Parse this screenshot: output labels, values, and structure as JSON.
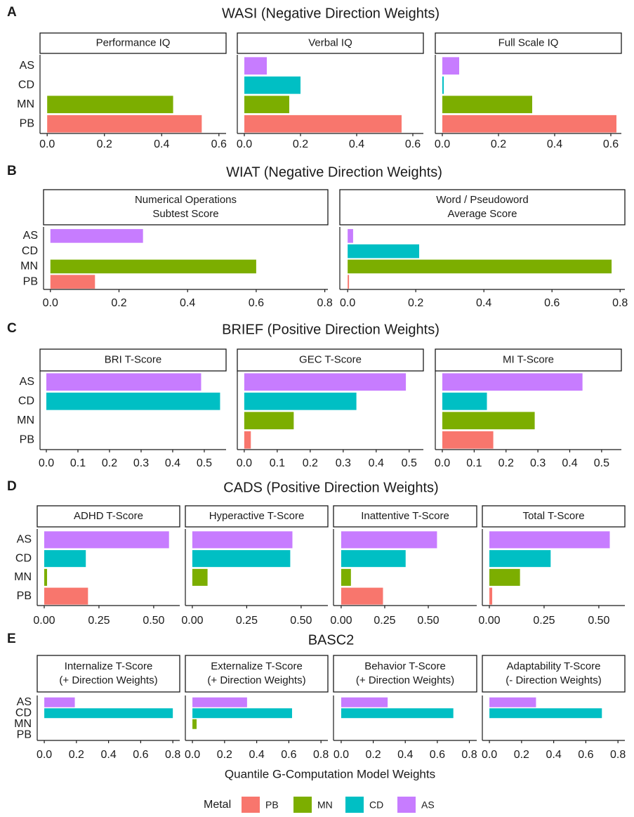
{
  "chart_data": [
    {
      "type": "bar",
      "label": "A",
      "title": "WASI (Negative Direction Weights)",
      "categories": [
        "AS",
        "CD",
        "MN",
        "PB"
      ],
      "facets": [
        {
          "title": [
            "Performance IQ"
          ],
          "values": [
            0,
            0,
            0.44,
            0.54
          ],
          "xlim": [
            -0.025,
            0.625
          ],
          "xticks": [
            {
              "value": 0,
              "label": "0.0"
            },
            0.2,
            0.4,
            0.6
          ]
        },
        {
          "title": [
            "Verbal IQ"
          ],
          "values": [
            0.08,
            0.2,
            0.16,
            0.56
          ],
          "xlim": [
            -0.025,
            0.6375
          ],
          "xticks": [
            {
              "value": 0,
              "label": "0.0"
            },
            0.2,
            0.4,
            0.6
          ]
        },
        {
          "title": [
            "Full Scale IQ"
          ],
          "values": [
            0.06,
            0.005,
            0.32,
            0.62
          ],
          "xlim": [
            -0.025,
            0.6375
          ],
          "xticks": [
            {
              "value": 0,
              "label": "0.0"
            },
            0.2,
            0.4,
            0.6
          ]
        }
      ]
    },
    {
      "type": "bar",
      "label": "B",
      "title": "WIAT (Negative Direction Weights)",
      "categories": [
        "AS",
        "CD",
        "MN",
        "PB"
      ],
      "facets": [
        {
          "title": [
            "Numerical Operations",
            "Subtest Score"
          ],
          "values": [
            0.27,
            0,
            0.6,
            0.13
          ],
          "xlim": [
            -0.02,
            0.809
          ],
          "xticks": [
            {
              "value": 0,
              "label": "0.0"
            },
            0.2,
            0.4,
            0.6,
            0.8
          ]
        },
        {
          "title": [
            "Word / Pseudoword",
            "Average Score"
          ],
          "values": [
            0.016,
            0.21,
            0.775,
            0.004
          ],
          "xlim": [
            -0.023,
            0.814
          ],
          "xticks": [
            {
              "value": 0,
              "label": "0.0"
            },
            0.2,
            0.4,
            0.6,
            0.8
          ]
        }
      ]
    },
    {
      "type": "bar",
      "label": "C",
      "title": "BRIEF (Positive Direction Weights)",
      "categories": [
        "AS",
        "CD",
        "MN",
        "PB"
      ],
      "facets": [
        {
          "title": [
            "BRI T-Score"
          ],
          "values": [
            0.49,
            0.55,
            0,
            0
          ],
          "xlim": [
            -0.02,
            0.569
          ],
          "xticks": [
            {
              "value": 0,
              "label": "0.0"
            },
            0.1,
            0.2,
            0.3,
            0.4,
            0.5
          ]
        },
        {
          "title": [
            "GEC T-Score"
          ],
          "values": [
            0.49,
            0.34,
            0.15,
            0.02
          ],
          "xlim": [
            -0.021,
            0.543
          ],
          "xticks": [
            {
              "value": 0,
              "label": "0.0"
            },
            0.1,
            0.2,
            0.3,
            0.4,
            0.5
          ]
        },
        {
          "title": [
            "MI T-Score"
          ],
          "values": [
            0.44,
            0.14,
            0.29,
            0.16
          ],
          "xlim": [
            -0.022,
            0.562
          ],
          "xticks": [
            {
              "value": 0,
              "label": "0.0"
            },
            0.1,
            0.2,
            0.3,
            0.4,
            0.5
          ]
        }
      ]
    },
    {
      "type": "bar",
      "label": "D",
      "title": "CADS (Positive Direction Weights)",
      "categories": [
        "AS",
        "CD",
        "MN",
        "PB"
      ],
      "facets": [
        {
          "title": [
            "ADHD T-Score"
          ],
          "values": [
            0.57,
            0.19,
            0.013,
            0.2
          ],
          "xlim": [
            -0.032,
            0.619
          ],
          "xticks": [
            {
              "value": 0,
              "label": "0.00"
            },
            0.25,
            {
              "value": 0.5,
              "label": "0.50"
            }
          ]
        },
        {
          "title": [
            "Hyperactive T-Score"
          ],
          "values": [
            0.46,
            0.45,
            0.07,
            0
          ],
          "xlim": [
            -0.032,
            0.623
          ],
          "xticks": [
            {
              "value": 0,
              "label": "0.00"
            },
            0.25,
            {
              "value": 0.5,
              "label": "0.50"
            }
          ]
        },
        {
          "title": [
            "Inattentive T-Score"
          ],
          "values": [
            0.55,
            0.37,
            0.056,
            0.24
          ],
          "xlim": [
            -0.044,
            0.778
          ],
          "xticks": [
            {
              "value": 0,
              "label": "0.00"
            },
            0.25,
            {
              "value": 0.5,
              "label": "0.50"
            }
          ]
        },
        {
          "title": [
            "Total T-Score"
          ],
          "values": [
            0.55,
            0.28,
            0.14,
            0.013
          ],
          "xlim": [
            -0.032,
            0.619
          ],
          "xticks": [
            {
              "value": 0,
              "label": "0.00"
            },
            0.25,
            {
              "value": 0.5,
              "label": "0.50"
            }
          ]
        }
      ]
    },
    {
      "type": "bar",
      "label": "E",
      "title": "BASC2",
      "categories": [
        "AS",
        "CD",
        "MN",
        "PB"
      ],
      "facets": [
        {
          "title": [
            "Internalize T-Score",
            "(+ Direction Weights)"
          ],
          "values": [
            0.19,
            0.8,
            0,
            0
          ],
          "xlim": [
            -0.044,
            0.843
          ],
          "xticks": [
            {
              "value": 0,
              "label": "0.0"
            },
            0.2,
            0.4,
            0.6,
            0.8
          ]
        },
        {
          "title": [
            "Externalize T-Score",
            "(+ Direction Weights)"
          ],
          "values": [
            0.34,
            0.62,
            0.026,
            0
          ],
          "xlim": [
            -0.044,
            0.843
          ],
          "xticks": [
            {
              "value": 0,
              "label": "0.0"
            },
            0.2,
            0.4,
            0.6,
            0.8
          ]
        },
        {
          "title": [
            "Behavior T-Score",
            "(+ Direction Weights)"
          ],
          "values": [
            0.29,
            0.7,
            0,
            0
          ],
          "xlim": [
            -0.048,
            0.846
          ],
          "xticks": [
            {
              "value": 0,
              "label": "0.0"
            },
            0.2,
            0.4,
            0.6,
            0.8
          ]
        },
        {
          "title": [
            "Adaptability T-Score",
            "(- Direction Weights)"
          ],
          "values": [
            0.29,
            0.7,
            0,
            0
          ],
          "xlim": [
            -0.044,
            0.843
          ],
          "xticks": [
            {
              "value": 0,
              "label": "0.0"
            },
            0.2,
            0.4,
            0.6,
            0.8
          ]
        }
      ]
    }
  ],
  "x_axis_label": "Quantile G-Computation Model Weights",
  "legend": {
    "title": "Metal",
    "items": [
      {
        "name": "PB",
        "color": "#F8766D"
      },
      {
        "name": "MN",
        "color": "#7CAE00"
      },
      {
        "name": "CD",
        "color": "#00BFC4"
      },
      {
        "name": "AS",
        "color": "#C77CFF"
      }
    ]
  }
}
